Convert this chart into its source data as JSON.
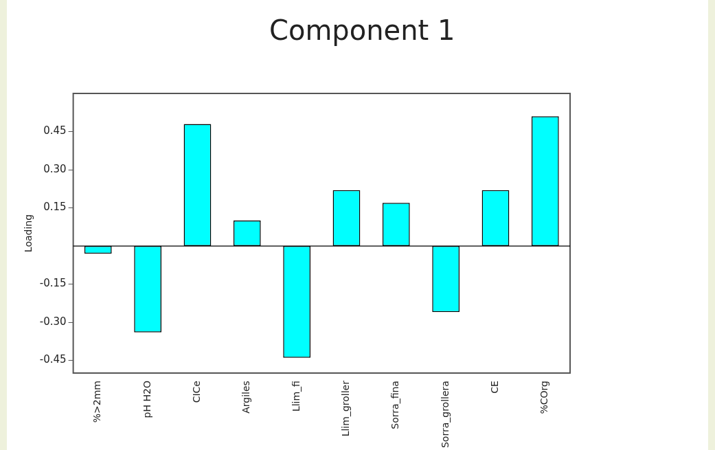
{
  "chart_data": {
    "type": "bar",
    "title": "Component 1",
    "ylabel": "Loading",
    "categories": [
      "%>2mm",
      "pH H2O",
      "CICe",
      "Argiles",
      "Llim_fi",
      "Llim_groller",
      "Sorra_fina",
      "Sorra_grollera",
      "CE",
      "%COrg"
    ],
    "values": [
      -0.03,
      -0.34,
      0.48,
      0.1,
      -0.44,
      0.22,
      0.17,
      -0.26,
      0.22,
      0.51
    ],
    "color": "#00ffff",
    "ylim": [
      -0.5,
      0.6
    ],
    "yticks": [
      0.45,
      {
        "value": 0.3,
        "label": "0.30"
      },
      0.15,
      -0.15,
      {
        "value": -0.3,
        "label": "-0.30"
      },
      -0.45
    ],
    "grid": false,
    "legend": false
  }
}
